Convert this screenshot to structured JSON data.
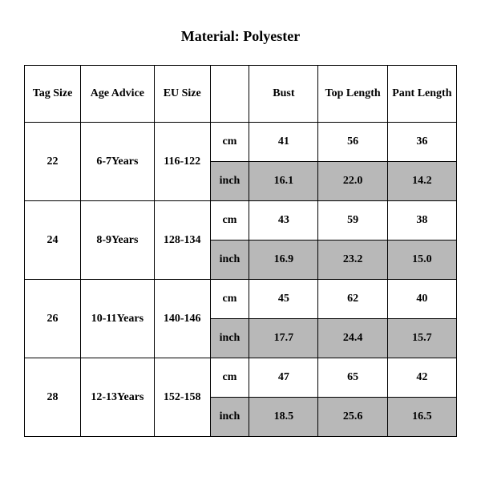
{
  "title": "Material: Polyester",
  "table": {
    "columns": [
      "Tag Size",
      "Age Advice",
      "EU Size",
      "",
      "Bust",
      "Top Length",
      "Pant Length"
    ],
    "unit_labels": {
      "cm": "cm",
      "inch": "inch"
    },
    "rows": [
      {
        "tag": "22",
        "age": "6-7Years",
        "eu": "116-122",
        "cm": {
          "bust": "41",
          "top": "56",
          "pant": "36"
        },
        "inch": {
          "bust": "16.1",
          "top": "22.0",
          "pant": "14.2"
        }
      },
      {
        "tag": "24",
        "age": "8-9Years",
        "eu": "128-134",
        "cm": {
          "bust": "43",
          "top": "59",
          "pant": "38"
        },
        "inch": {
          "bust": "16.9",
          "top": "23.2",
          "pant": "15.0"
        }
      },
      {
        "tag": "26",
        "age": "10-11Years",
        "eu": "140-146",
        "cm": {
          "bust": "45",
          "top": "62",
          "pant": "40"
        },
        "inch": {
          "bust": "17.7",
          "top": "24.4",
          "pant": "15.7"
        }
      },
      {
        "tag": "28",
        "age": "12-13Years",
        "eu": "152-158",
        "cm": {
          "bust": "47",
          "top": "65",
          "pant": "42"
        },
        "inch": {
          "bust": "18.5",
          "top": "25.6",
          "pant": "16.5"
        }
      }
    ],
    "colors": {
      "background": "#ffffff",
      "border": "#000000",
      "shaded": "#b8b8b8",
      "text": "#000000"
    },
    "fonts": {
      "title_size_pt": 18,
      "cell_size_pt": 14,
      "family": "Times New Roman"
    },
    "column_widths_pct": [
      13,
      17,
      13,
      9,
      16,
      16,
      16
    ]
  }
}
